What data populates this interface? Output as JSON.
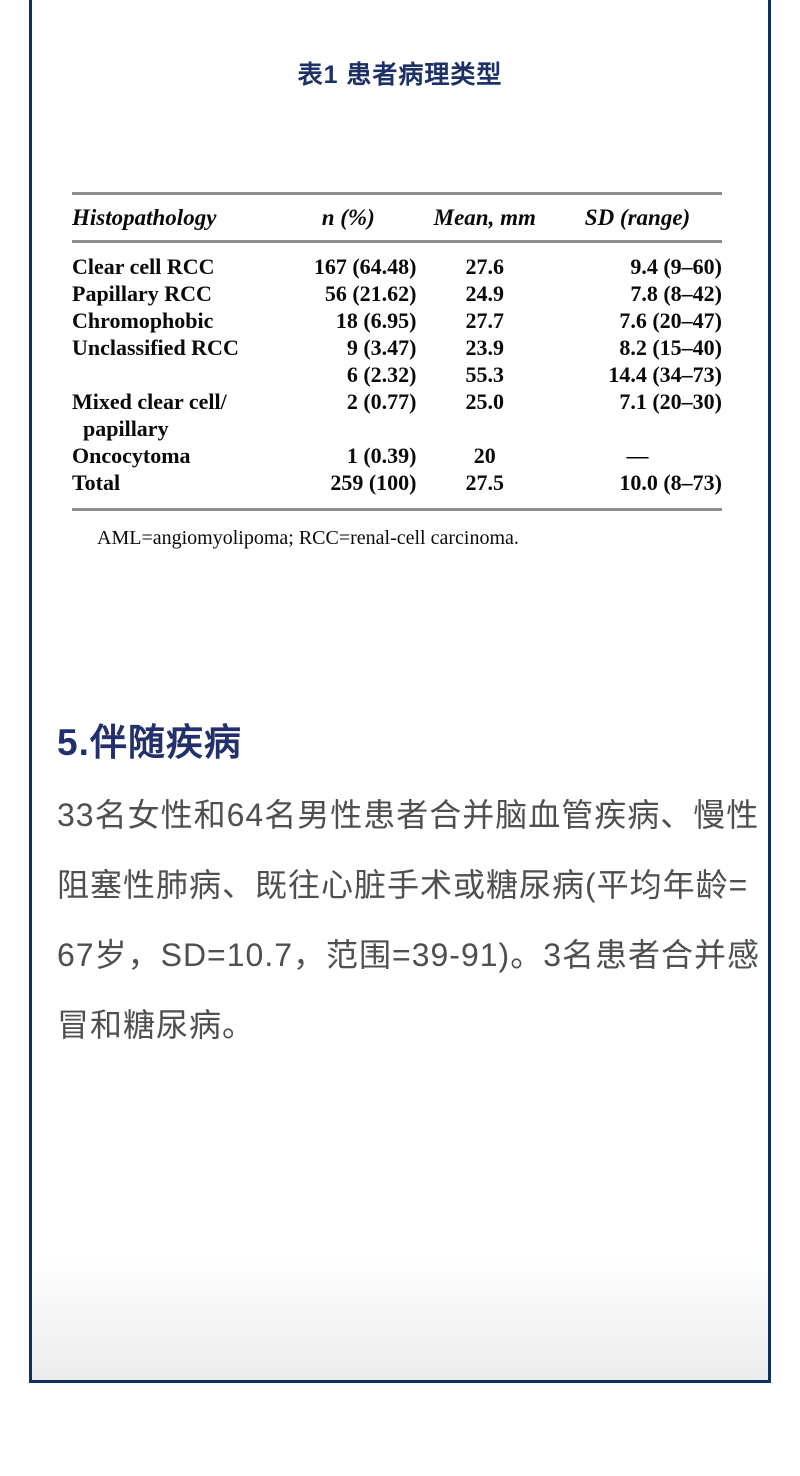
{
  "colors": {
    "card_border": "#12305f",
    "title_navy": "#1d3166",
    "heading_navy": "#24306b",
    "paragraph_gray": "#4f4f4f",
    "table_rule_gray": "#8f8f8f"
  },
  "table_section": {
    "title": "表1 患者病理类型",
    "headers": [
      "Histopathology",
      "n (%)",
      "Mean, mm",
      "SD (range)"
    ],
    "rows": [
      [
        "Clear cell RCC",
        "167 (64.48)",
        "27.6",
        "9.4 (9–60)"
      ],
      [
        "Papillary RCC",
        "56 (21.62)",
        "24.9",
        "7.8 (8–42)"
      ],
      [
        "Chromophobic",
        "18 (6.95)",
        "27.7",
        "7.6 (20–47)"
      ],
      [
        "Unclassified RCC",
        "9 (3.47)",
        "23.9",
        "8.2 (15–40)"
      ],
      [
        "",
        "6 (2.32)",
        "55.3",
        "14.4 (34–73)"
      ],
      [
        "Mixed clear cell/\n  papillary",
        "2 (0.77)",
        "25.0",
        "7.1 (20–30)"
      ],
      [
        "Oncocytoma",
        "1 (0.39)",
        "20",
        "—"
      ],
      [
        "Total",
        "259 (100)",
        "27.5",
        "10.0 (8–73)"
      ]
    ],
    "footnote": "AML=angiomyolipoma; RCC=renal-cell carcinoma."
  },
  "comorbidity_section": {
    "heading": "5.伴随疾病",
    "paragraph_lines": [
      "33名女性和64名男性患者合并脑血管疾病、慢性",
      "阻塞性肺病、既往心脏手术或糖尿病(平均年龄=",
      "67岁，SD=10.7，范围=39-91)。3名患者合并感",
      "冒和糖尿病。"
    ]
  }
}
